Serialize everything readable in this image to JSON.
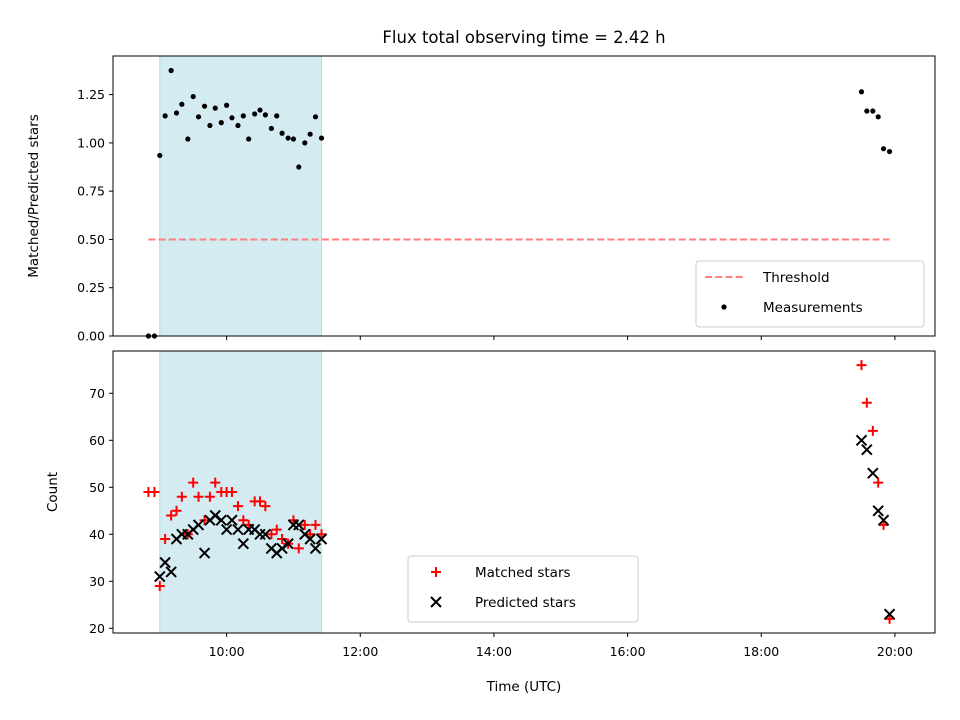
{
  "figure": {
    "title": "Flux total observing time = 2.42 h"
  },
  "chart_data": [
    {
      "type": "scatter",
      "panel": "top",
      "title": "Flux total observing time = 2.42 h",
      "xlabel": "",
      "ylabel": "Matched/Predicted stars",
      "x_unit": "hours UTC",
      "xlim": [
        8.3,
        20.6
      ],
      "ylim": [
        0,
        1.45
      ],
      "yticks": [
        0.0,
        0.25,
        0.5,
        0.75,
        1.0,
        1.25
      ],
      "ytick_labels": [
        "0.00",
        "0.25",
        "0.50",
        "0.75",
        "1.00",
        "1.25"
      ],
      "xticks": [
        10,
        12,
        14,
        16,
        18,
        20
      ],
      "shaded_region": {
        "x": [
          9.0,
          11.42
        ],
        "color": "#add8e6"
      },
      "legend_position": "lower-right",
      "series": [
        {
          "name": "Threshold",
          "kind": "line",
          "style": "dashed",
          "color": "#ff7f7f",
          "x": [
            8.83,
            19.92
          ],
          "y": [
            0.5,
            0.5
          ]
        },
        {
          "name": "Measurements",
          "kind": "scatter",
          "marker": "dot",
          "color": "#000000",
          "x": [
            8.83,
            8.92,
            9.0,
            9.08,
            9.17,
            9.25,
            9.33,
            9.42,
            9.5,
            9.58,
            9.67,
            9.75,
            9.83,
            9.92,
            10.0,
            10.08,
            10.17,
            10.25,
            10.33,
            10.42,
            10.5,
            10.58,
            10.67,
            10.75,
            10.83,
            10.92,
            11.0,
            11.08,
            11.17,
            11.25,
            11.33,
            11.42,
            19.5,
            19.58,
            19.67,
            19.75,
            19.83,
            19.92
          ],
          "y": [
            0.0,
            0.0,
            0.935,
            1.14,
            1.375,
            1.155,
            1.2,
            1.02,
            1.24,
            1.135,
            1.19,
            1.09,
            1.18,
            1.105,
            1.195,
            1.13,
            1.09,
            1.14,
            1.02,
            1.15,
            1.17,
            1.145,
            1.075,
            1.14,
            1.05,
            1.025,
            1.02,
            0.875,
            1.0,
            1.045,
            1.135,
            1.025,
            1.265,
            1.165,
            1.165,
            1.135,
            0.97,
            0.955
          ]
        }
      ]
    },
    {
      "type": "scatter",
      "panel": "bottom",
      "xlabel": "Time (UTC)",
      "ylabel": "Count",
      "x_unit": "hours UTC",
      "xlim": [
        8.3,
        20.6
      ],
      "ylim": [
        19,
        79
      ],
      "yticks": [
        20,
        30,
        40,
        50,
        60,
        70
      ],
      "ytick_labels": [
        "20",
        "30",
        "40",
        "50",
        "60",
        "70"
      ],
      "xticks": [
        10,
        12,
        14,
        16,
        18,
        20
      ],
      "xtick_labels": [
        "10:00",
        "12:00",
        "14:00",
        "16:00",
        "18:00",
        "20:00"
      ],
      "shaded_region": {
        "x": [
          9.0,
          11.42
        ],
        "color": "#add8e6"
      },
      "legend_position": "lower-center",
      "series": [
        {
          "name": "Matched stars",
          "kind": "scatter",
          "marker": "plus",
          "color": "#ff0000",
          "x": [
            8.83,
            8.92,
            9.0,
            9.08,
            9.17,
            9.25,
            9.33,
            9.42,
            9.5,
            9.58,
            9.67,
            9.75,
            9.83,
            9.92,
            10.0,
            10.08,
            10.17,
            10.25,
            10.33,
            10.42,
            10.5,
            10.58,
            10.67,
            10.75,
            10.83,
            10.92,
            11.0,
            11.08,
            11.17,
            11.25,
            11.33,
            11.42,
            19.5,
            19.58,
            19.67,
            19.75,
            19.83,
            19.92
          ],
          "y": [
            49,
            49,
            29,
            39,
            44,
            45,
            48,
            40,
            51,
            48,
            43,
            48,
            51,
            49,
            49,
            49,
            46,
            43,
            42,
            47,
            47,
            46,
            40,
            41,
            39,
            38,
            43,
            37,
            42,
            40,
            42,
            40,
            76,
            68,
            62,
            51,
            42,
            22
          ]
        },
        {
          "name": "Predicted stars",
          "kind": "scatter",
          "marker": "x",
          "color": "#000000",
          "x": [
            9.0,
            9.08,
            9.17,
            9.25,
            9.33,
            9.42,
            9.5,
            9.58,
            9.67,
            9.75,
            9.83,
            9.92,
            10.0,
            10.08,
            10.17,
            10.25,
            10.33,
            10.42,
            10.5,
            10.58,
            10.67,
            10.75,
            10.83,
            10.92,
            11.0,
            11.08,
            11.17,
            11.25,
            11.33,
            11.42,
            19.5,
            19.58,
            19.67,
            19.75,
            19.83,
            19.92
          ],
          "y": [
            31,
            34,
            32,
            39,
            40,
            40,
            41,
            42,
            36,
            43,
            44,
            43,
            41,
            43,
            41,
            38,
            41,
            41,
            40,
            40,
            37,
            36,
            37,
            38,
            42,
            42,
            40,
            39,
            37,
            39,
            60,
            58,
            53,
            45,
            43,
            23
          ]
        }
      ]
    }
  ]
}
